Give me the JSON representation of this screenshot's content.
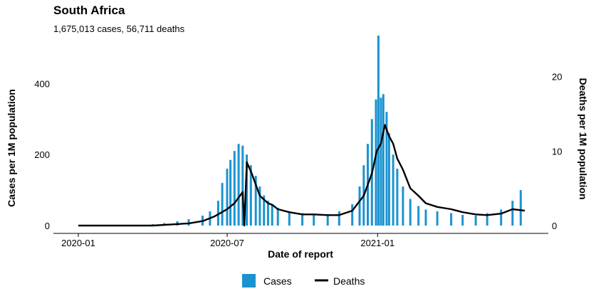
{
  "chart_data": {
    "type": "bar",
    "title": "South Africa",
    "subtitle": "1,675,013 cases, 56,711 deaths",
    "xlabel": "Date of report",
    "ylabel_left": "Cases per 1M population",
    "ylabel_right": "Deaths per 1M population",
    "x_ticks": [
      "2020-01",
      "2020-07",
      "2021-01"
    ],
    "x_range": [
      "2020-01-01",
      "2021-06-30"
    ],
    "y_left_ticks": [
      0,
      200,
      400
    ],
    "y_left_range": [
      0,
      535
    ],
    "y_right_ticks": [
      0,
      10,
      20
    ],
    "y_right_range": [
      0,
      25.5
    ],
    "grid": false,
    "legend_position": "bottom",
    "series": [
      {
        "name": "Cases",
        "type": "bar",
        "axis": "left",
        "color": "#1a93d0",
        "x": [
          "2020-03-15",
          "2020-04-01",
          "2020-04-15",
          "2020-05-01",
          "2020-05-15",
          "2020-06-01",
          "2020-06-10",
          "2020-06-20",
          "2020-06-25",
          "2020-07-01",
          "2020-07-05",
          "2020-07-10",
          "2020-07-15",
          "2020-07-20",
          "2020-07-25",
          "2020-07-30",
          "2020-08-05",
          "2020-08-10",
          "2020-08-15",
          "2020-08-20",
          "2020-08-25",
          "2020-09-01",
          "2020-09-15",
          "2020-10-01",
          "2020-10-15",
          "2020-11-01",
          "2020-11-15",
          "2020-12-01",
          "2020-12-10",
          "2020-12-15",
          "2020-12-20",
          "2020-12-25",
          "2020-12-30",
          "2021-01-02",
          "2021-01-05",
          "2021-01-08",
          "2021-01-12",
          "2021-01-15",
          "2021-01-20",
          "2021-01-25",
          "2021-02-01",
          "2021-02-10",
          "2021-02-20",
          "2021-03-01",
          "2021-03-15",
          "2021-04-01",
          "2021-04-15",
          "2021-05-01",
          "2021-05-15",
          "2021-06-01",
          "2021-06-15",
          "2021-06-25"
        ],
        "values": [
          2,
          4,
          7,
          12,
          18,
          28,
          40,
          70,
          120,
          160,
          185,
          210,
          230,
          225,
          200,
          170,
          140,
          110,
          85,
          70,
          60,
          50,
          40,
          35,
          30,
          32,
          40,
          60,
          110,
          170,
          230,
          300,
          355,
          535,
          360,
          370,
          320,
          260,
          200,
          160,
          110,
          75,
          55,
          45,
          40,
          35,
          30,
          28,
          35,
          45,
          70,
          100
        ]
      },
      {
        "name": "Deaths",
        "type": "line",
        "axis": "right",
        "color": "#000000",
        "x": [
          "2020-01-01",
          "2020-03-01",
          "2020-04-01",
          "2020-05-01",
          "2020-05-15",
          "2020-06-01",
          "2020-06-15",
          "2020-07-01",
          "2020-07-10",
          "2020-07-20",
          "2020-07-22",
          "2020-07-25",
          "2020-07-31",
          "2020-08-05",
          "2020-08-10",
          "2020-08-15",
          "2020-08-20",
          "2020-08-25",
          "2020-09-01",
          "2020-09-15",
          "2020-10-01",
          "2020-10-15",
          "2020-11-01",
          "2020-11-15",
          "2020-12-01",
          "2020-12-15",
          "2020-12-25",
          "2020-12-31",
          "2021-01-05",
          "2021-01-10",
          "2021-01-15",
          "2021-01-20",
          "2021-01-25",
          "2021-02-01",
          "2021-02-10",
          "2021-02-20",
          "2021-03-01",
          "2021-03-15",
          "2021-04-01",
          "2021-04-15",
          "2021-05-01",
          "2021-05-15",
          "2021-06-01",
          "2021-06-15",
          "2021-06-30"
        ],
        "values": [
          0,
          0,
          0,
          0.2,
          0.3,
          0.6,
          1.2,
          2.2,
          3.0,
          4.5,
          0,
          8.5,
          7.0,
          5.5,
          4.0,
          3.5,
          3.0,
          2.8,
          2.2,
          1.8,
          1.5,
          1.5,
          1.4,
          1.4,
          2.0,
          4.0,
          7.0,
          10.0,
          11.0,
          13.5,
          12.0,
          11.0,
          9.0,
          7.5,
          5.0,
          4.0,
          3.0,
          2.5,
          2.2,
          1.8,
          1.5,
          1.4,
          1.6,
          2.2,
          2.0
        ]
      }
    ]
  }
}
